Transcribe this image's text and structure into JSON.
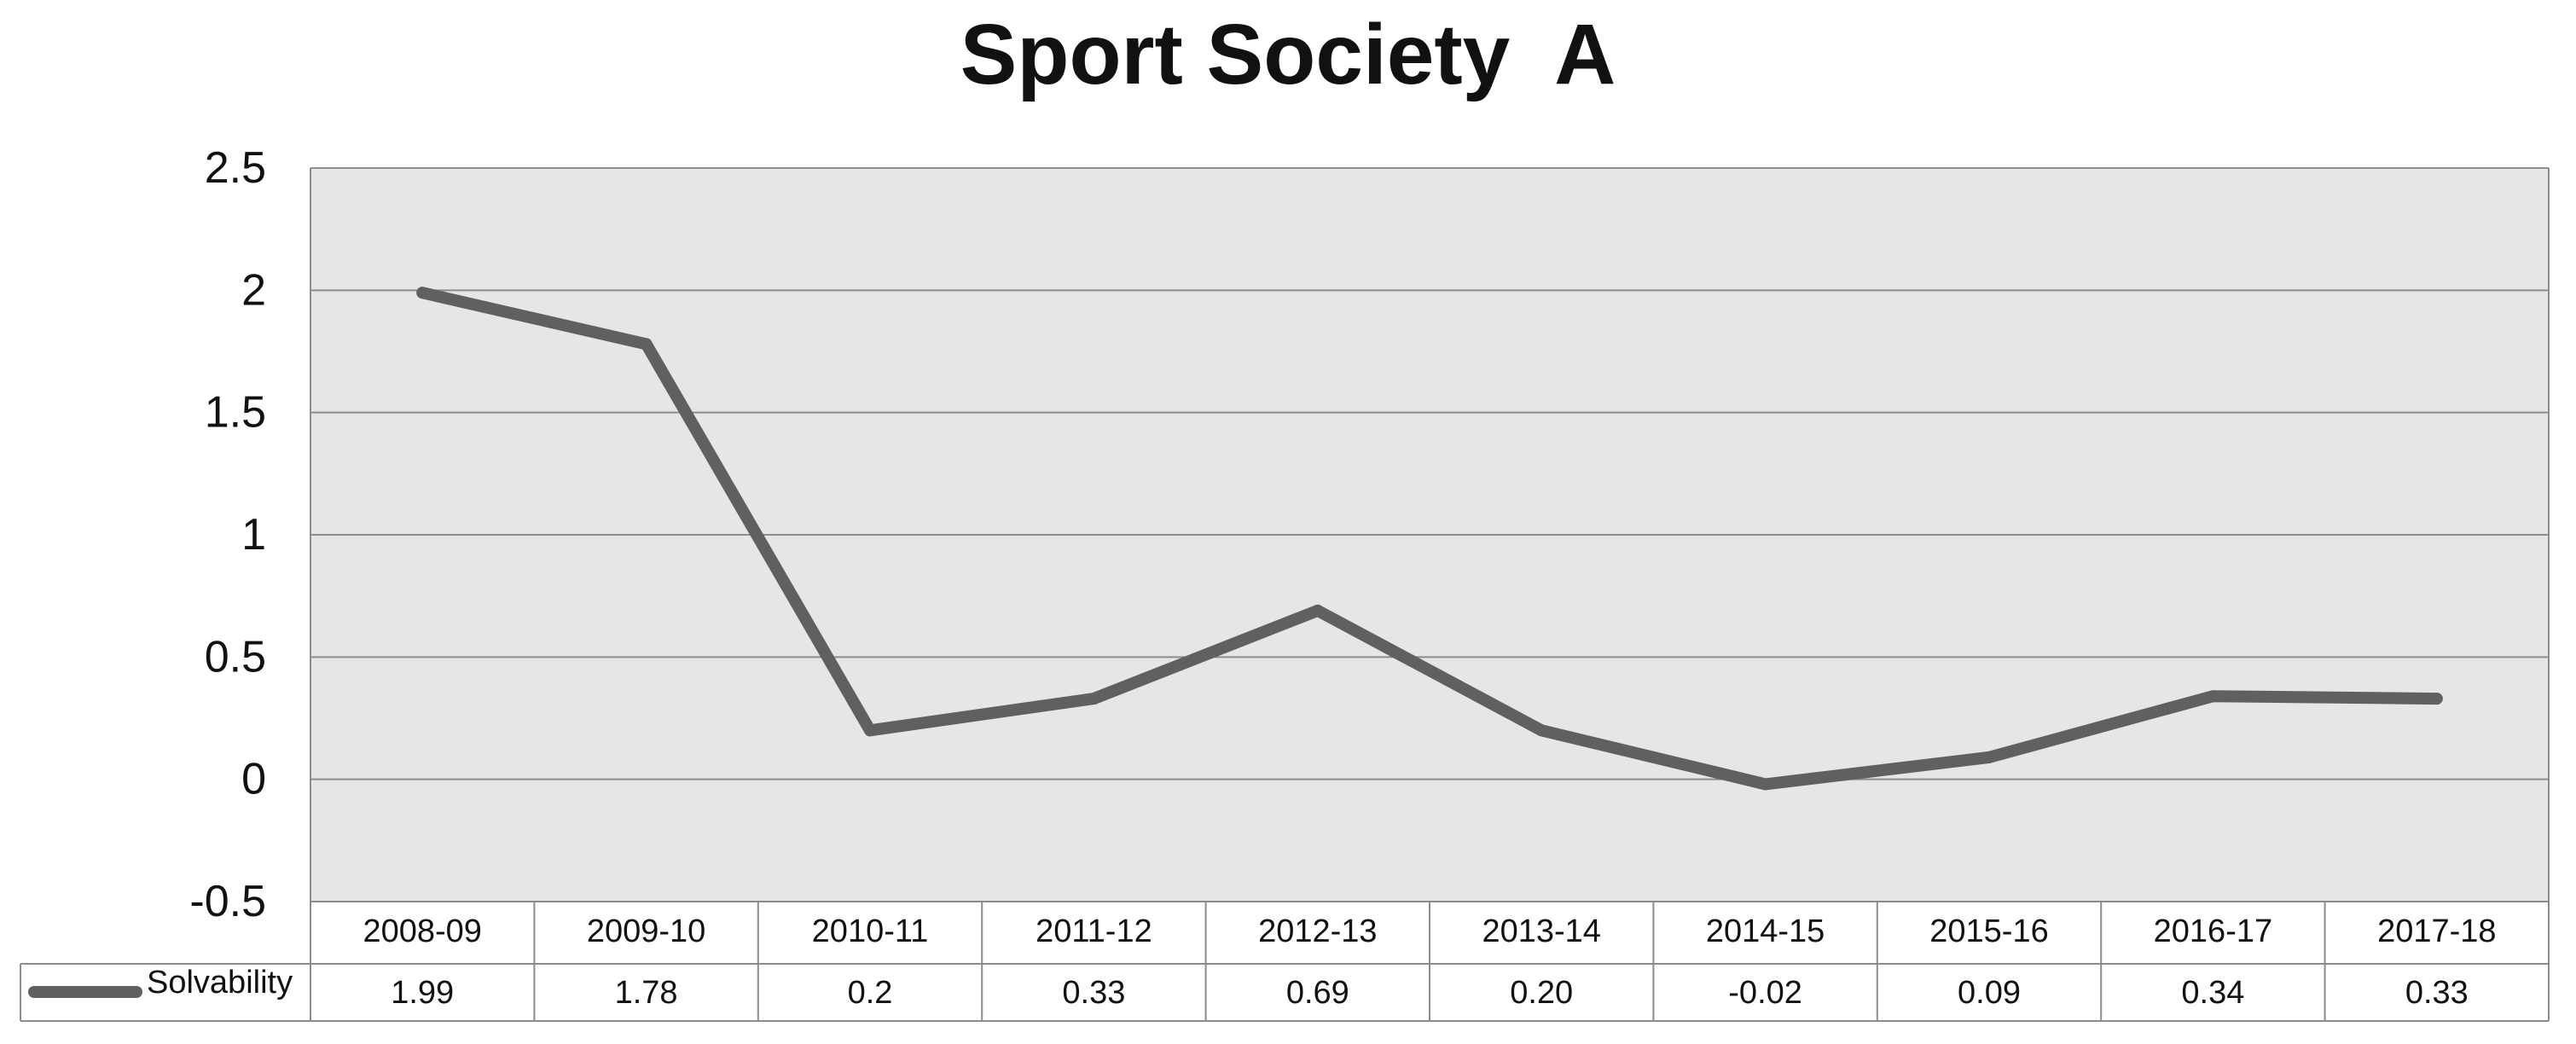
{
  "chart_data": {
    "type": "line",
    "title": "Sport Society  A",
    "categories": [
      "2008-09",
      "2009-10",
      "2010-11",
      "2011-12",
      "2012-13",
      "2013-14",
      "2014-15",
      "2015-16",
      "2016-17",
      "2017-18"
    ],
    "series": [
      {
        "name": "Solvability",
        "values": [
          1.99,
          1.78,
          0.2,
          0.33,
          0.69,
          0.2,
          -0.02,
          0.09,
          0.34,
          0.33
        ],
        "value_labels": [
          "1.99",
          "1.78",
          "0.2",
          "0.33",
          "0.69",
          "0.20",
          "-0.02",
          "0.09",
          "0.34",
          "0.33"
        ]
      }
    ],
    "yticks": [
      "2.5",
      "2",
      "1.5",
      "1",
      "0.5",
      "0",
      "-0.5"
    ],
    "ylim": [
      -0.5,
      2.5
    ],
    "grid": true,
    "data_table": true,
    "colors": {
      "line": "#606060",
      "plot_bg": "#e6e6e6",
      "grid": "#8c8c8c",
      "table_border": "#8c8c8c"
    }
  }
}
